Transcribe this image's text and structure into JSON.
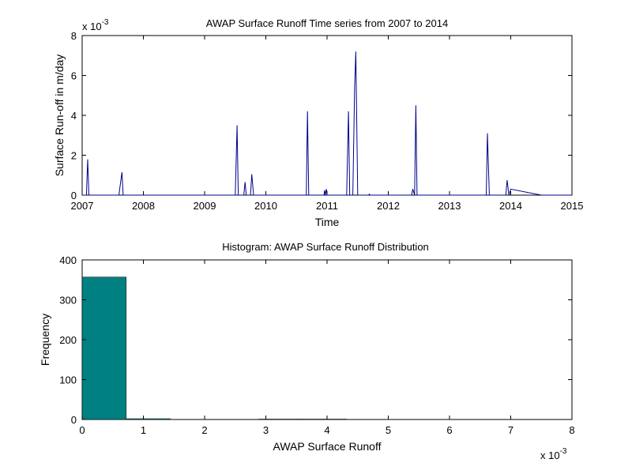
{
  "chart_data": [
    {
      "type": "line",
      "title": "AWAP Surface Runoff Time series from 2007 to 2014",
      "xlabel": "Time",
      "ylabel": "Surface Run-off in m/day",
      "xlim": [
        2007,
        2015
      ],
      "ylim": [
        0,
        8
      ],
      "y_multiplier_base": "x 10",
      "y_multiplier_exp": "-3",
      "xticks": [
        "2007",
        "2008",
        "2009",
        "2010",
        "2011",
        "2012",
        "2013",
        "2014",
        "2015"
      ],
      "yticks": [
        "0",
        "2",
        "4",
        "6",
        "8"
      ],
      "line_color": "#00008B",
      "series": [
        {
          "x": [
            2007.0,
            2007.07,
            2007.09,
            2007.11,
            2007.6,
            2007.65,
            2007.67,
            2007.7,
            2009.5,
            2009.53,
            2009.55,
            2009.58,
            2009.64,
            2009.66,
            2009.68,
            2009.75,
            2009.77,
            2009.8,
            2010.66,
            2010.68,
            2010.7,
            2010.95,
            2010.96,
            2010.97,
            2010.99,
            2011.0,
            2011.32,
            2011.35,
            2011.37,
            2011.42,
            2011.45,
            2011.47,
            2011.5,
            2011.52,
            2011.68,
            2011.69,
            2011.7,
            2012.38,
            2012.4,
            2012.43,
            2012.45,
            2012.47,
            2013.6,
            2013.62,
            2013.65,
            2013.92,
            2013.94,
            2013.97,
            2014.0,
            2014.5,
            2015.0
          ],
          "y": [
            0,
            0,
            1.8,
            0,
            0,
            1.15,
            0,
            0,
            0,
            3.5,
            0,
            0,
            0,
            0.65,
            0,
            0,
            1.05,
            0,
            0,
            4.2,
            0,
            0,
            0.25,
            0,
            0.3,
            0,
            0,
            4.2,
            0,
            0,
            5.4,
            7.2,
            0,
            0,
            0,
            0.05,
            0,
            0,
            0.3,
            0,
            4.5,
            0,
            0,
            3.1,
            0,
            0,
            0.75,
            0,
            0.3,
            0,
            0
          ]
        }
      ]
    },
    {
      "type": "bar",
      "title": "Histogram: AWAP Surface Runoff Distribution",
      "xlabel": "AWAP Surface Runoff",
      "ylabel": "Frequency",
      "xlim": [
        0,
        8
      ],
      "ylim": [
        0,
        400
      ],
      "x_multiplier_base": "x 10",
      "x_multiplier_exp": "-3",
      "xticks": [
        "0",
        "1",
        "2",
        "3",
        "4",
        "5",
        "6",
        "7",
        "8"
      ],
      "yticks": [
        "0",
        "100",
        "200",
        "300",
        "400"
      ],
      "bar_color": "#008080",
      "bin_edges": [
        0,
        0.72,
        1.44,
        2.16,
        2.88,
        3.6,
        4.32,
        5.04,
        5.76,
        6.48,
        7.2
      ],
      "values": [
        357,
        2,
        0,
        0,
        1,
        1,
        0,
        0,
        0,
        0
      ]
    }
  ]
}
